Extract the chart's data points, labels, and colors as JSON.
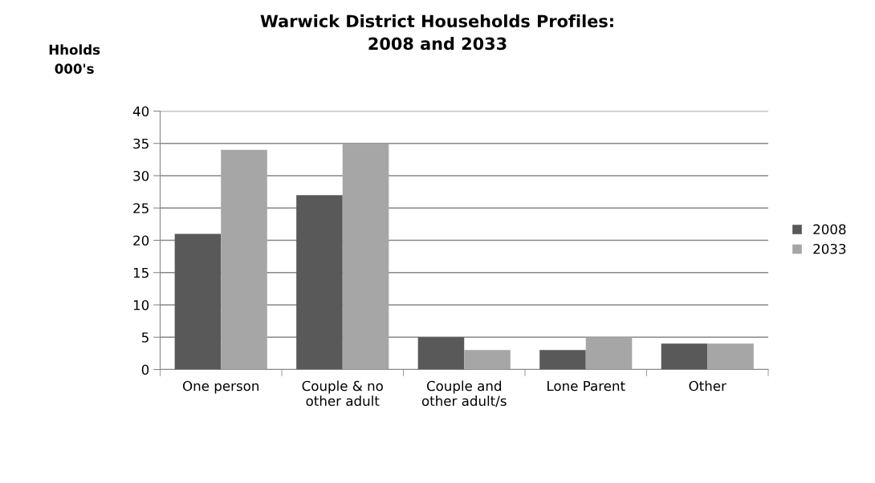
{
  "chart_data": {
    "type": "bar",
    "title": "Warwick District Households Profiles:\n2008 and 2033",
    "ylabel": "Hholds\n000's",
    "categories": [
      "One person",
      "Couple & no\nother adult",
      "Couple and\nother adult/s",
      "Lone Parent",
      "Other"
    ],
    "series": [
      {
        "name": "2008",
        "color": "#595959",
        "values": [
          21,
          27,
          5,
          3,
          4
        ]
      },
      {
        "name": "2033",
        "color": "#a6a6a6",
        "values": [
          34,
          35,
          3,
          5,
          4
        ]
      }
    ],
    "ylim": [
      0,
      40
    ],
    "yticks": [
      0,
      5,
      10,
      15,
      20,
      25,
      30,
      35,
      40
    ],
    "grid": "y",
    "legend": "right"
  }
}
